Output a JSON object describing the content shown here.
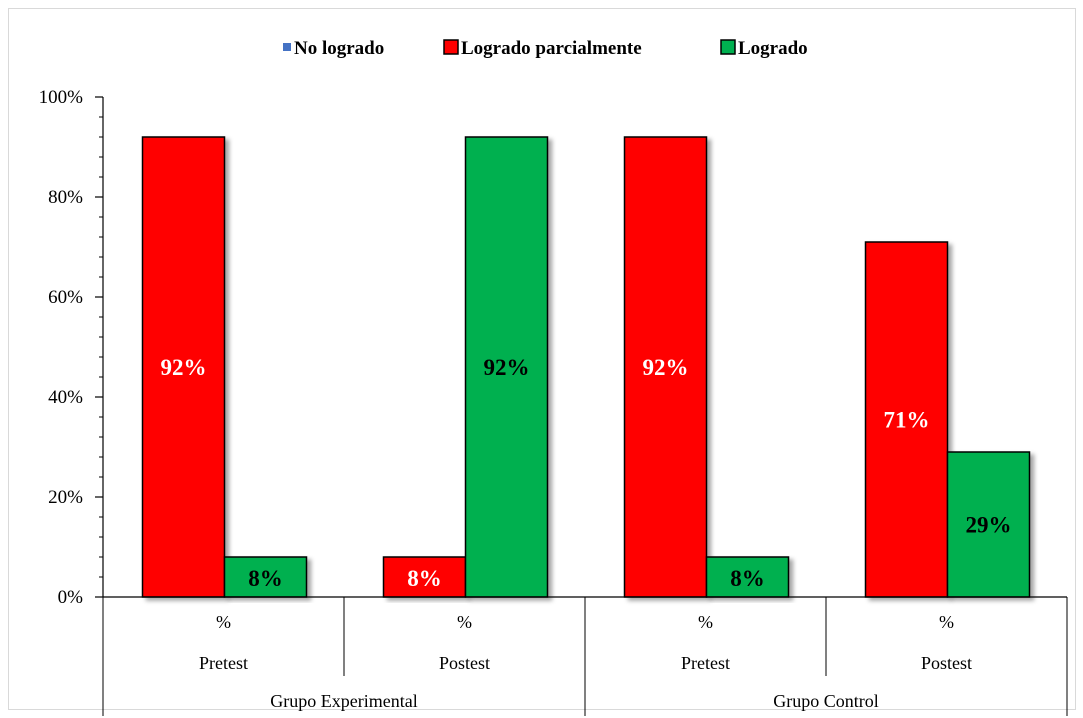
{
  "chart_data": {
    "type": "bar",
    "legend": [
      "No logrado",
      "Logrado parcialmente",
      "Logrado"
    ],
    "legend_position": "top",
    "colors": [
      "#4472c4",
      "#ff0000",
      "#00b050"
    ],
    "ylim": [
      0,
      100
    ],
    "y_ticks": [
      "0%",
      "20%",
      "40%",
      "60%",
      "80%",
      "100%"
    ],
    "categories": [
      {
        "measure": "%",
        "phase": "Pretest",
        "group": "Grupo Experimental"
      },
      {
        "measure": "%",
        "phase": "Postest",
        "group": "Grupo Experimental"
      },
      {
        "measure": "%",
        "phase": "Pretest",
        "group": "Grupo Control"
      },
      {
        "measure": "%",
        "phase": "Postest",
        "group": "Grupo Control"
      }
    ],
    "groups": [
      "Grupo Experimental",
      "Grupo Control"
    ],
    "series": [
      {
        "name": "No logrado",
        "values": [
          0,
          0,
          0,
          0
        ],
        "labels": [
          "",
          "",
          "",
          ""
        ]
      },
      {
        "name": "Logrado parcialmente",
        "values": [
          92,
          8,
          92,
          71
        ],
        "labels": [
          "92%",
          "8%",
          "92%",
          "71%"
        ]
      },
      {
        "name": "Logrado",
        "values": [
          8,
          92,
          8,
          29
        ],
        "labels": [
          "8%",
          "92%",
          "8%",
          "29%"
        ]
      }
    ],
    "label_colors": [
      "#000000",
      "#ffffff",
      "#000000"
    ]
  }
}
